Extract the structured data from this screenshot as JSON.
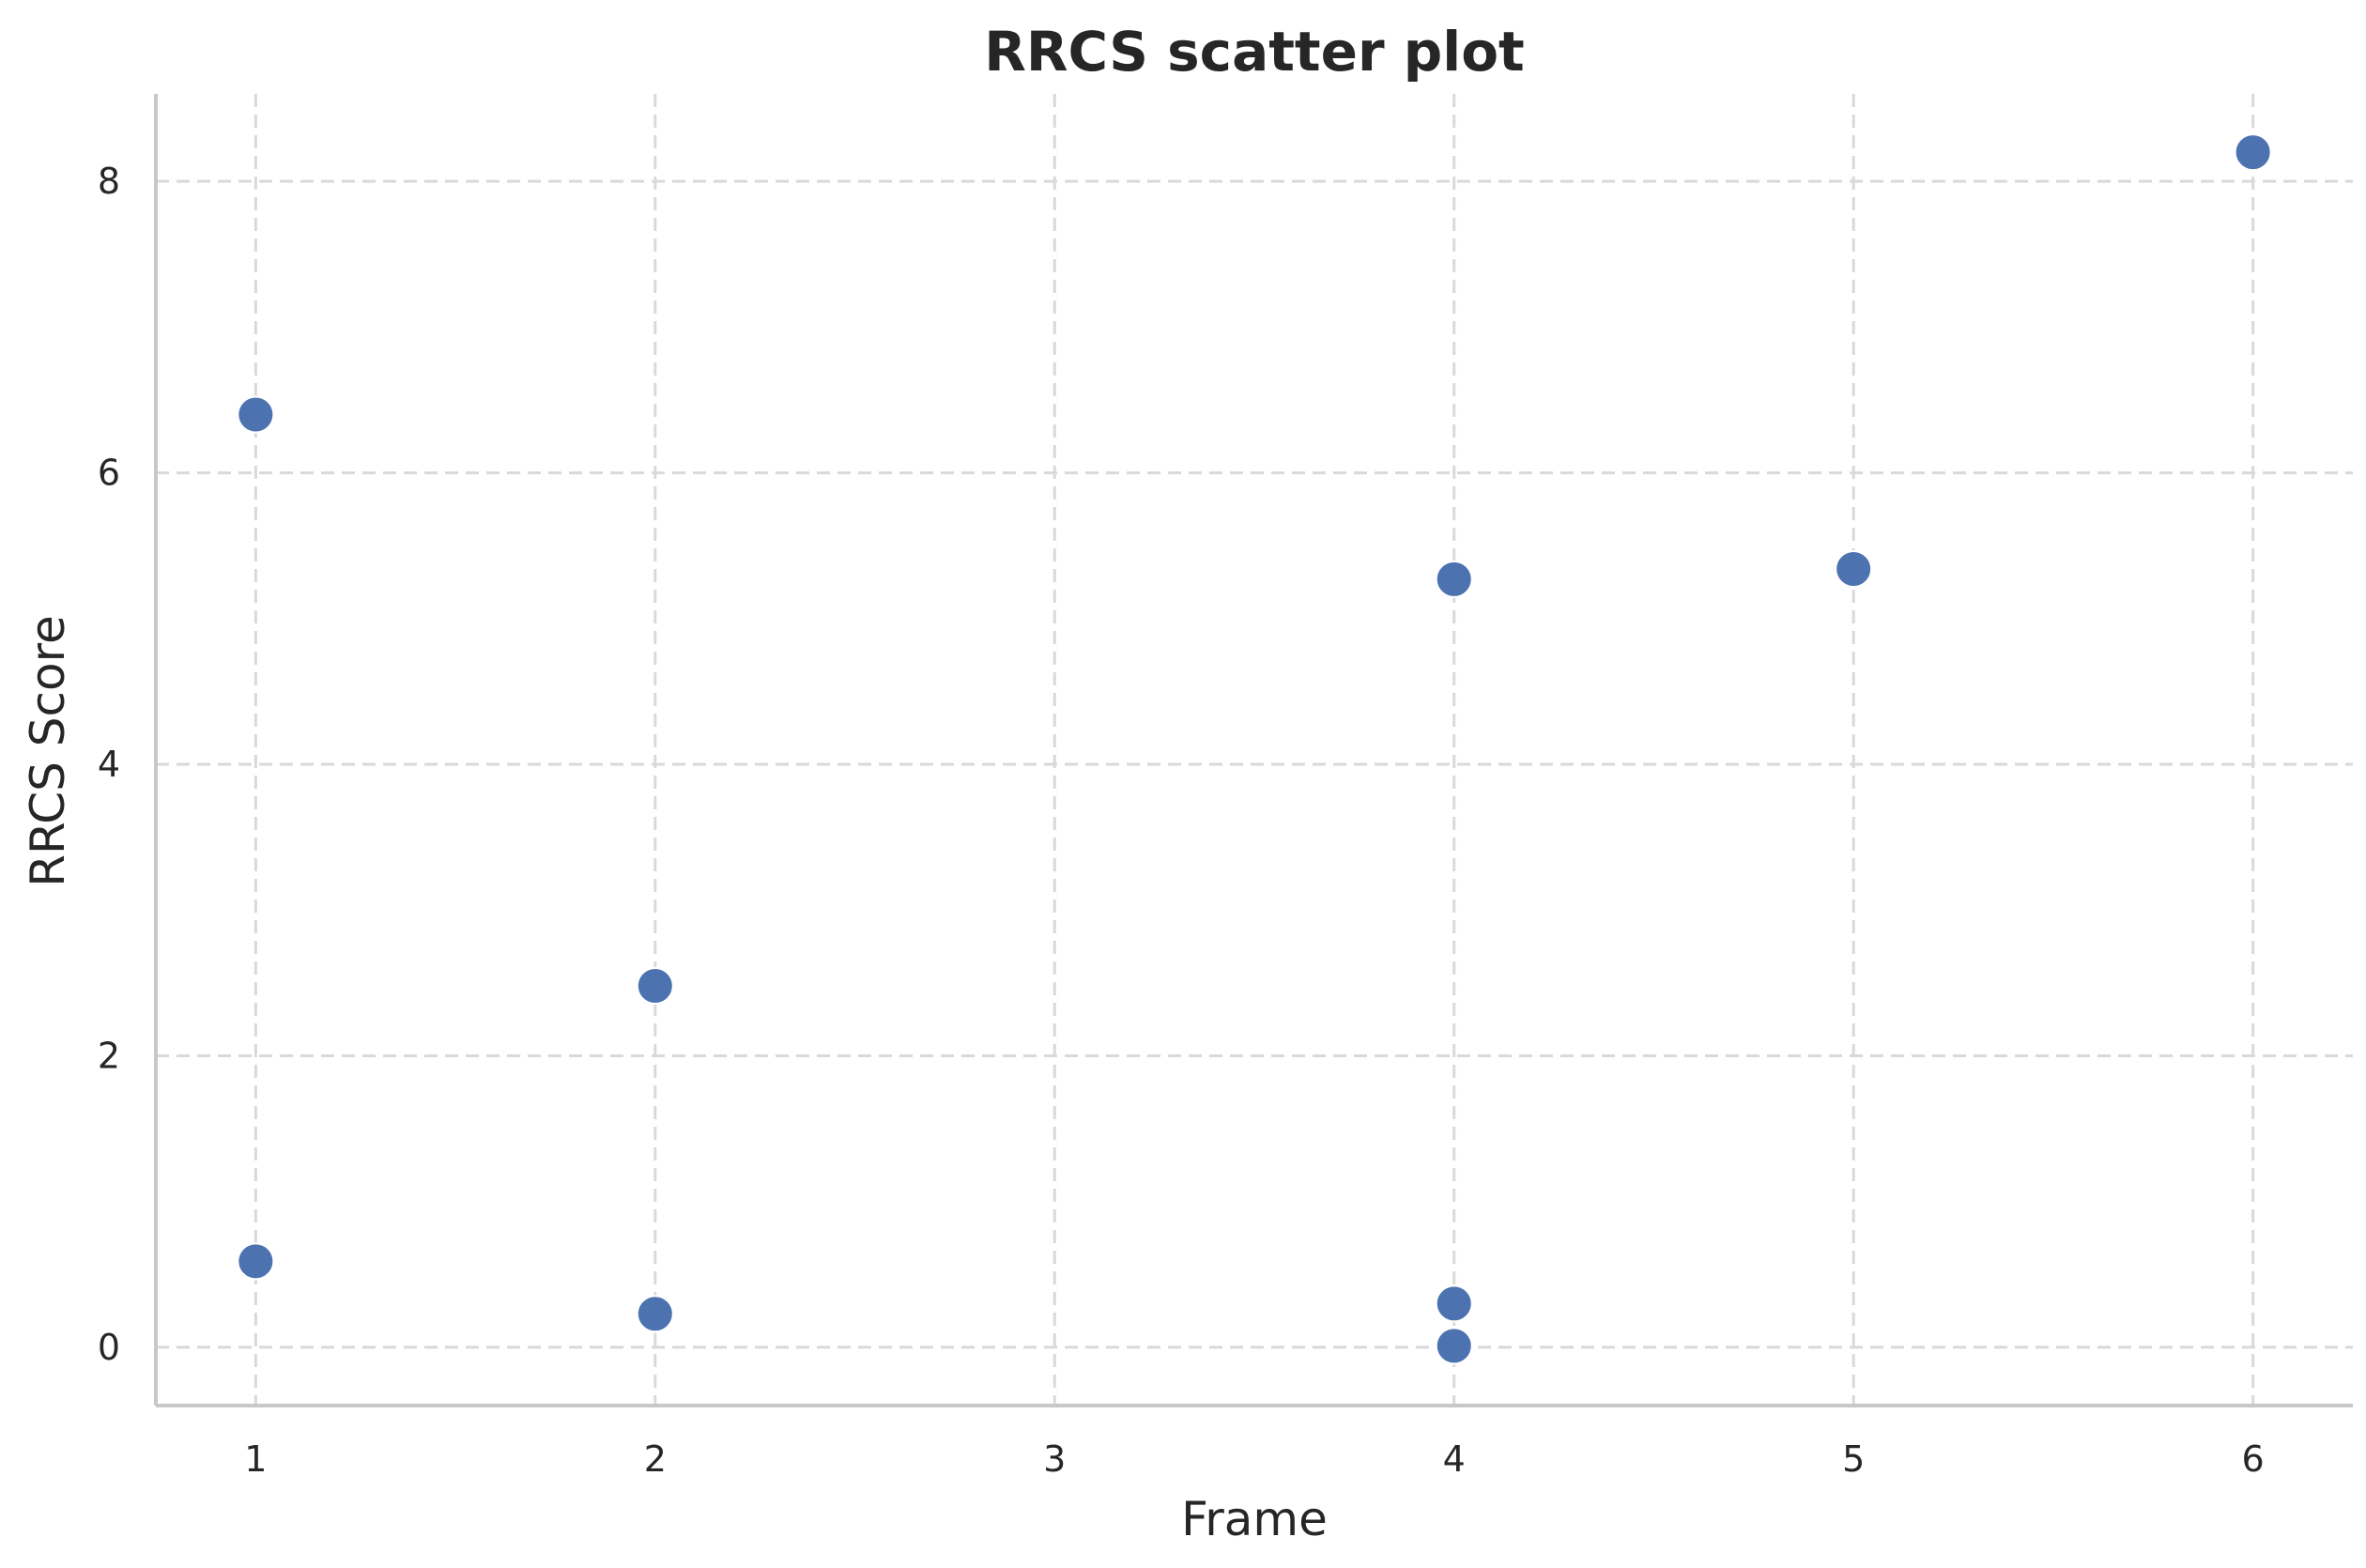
{
  "chart_data": {
    "type": "scatter",
    "title": "RRCS scatter plot",
    "xlabel": "Frame",
    "ylabel": "RRCS Score",
    "xlim": [
      0.75,
      6.25
    ],
    "ylim": [
      -0.4,
      8.6
    ],
    "xticks": [
      1,
      2,
      3,
      4,
      5,
      6
    ],
    "yticks": [
      0,
      2,
      4,
      6,
      8
    ],
    "grid": true,
    "point_color": "#4c72b0",
    "series": [
      {
        "points": [
          {
            "x": 1,
            "y": 6.4
          },
          {
            "x": 1,
            "y": 0.59
          },
          {
            "x": 2,
            "y": 2.48
          },
          {
            "x": 2,
            "y": 0.23
          },
          {
            "x": 4,
            "y": 5.27
          },
          {
            "x": 4,
            "y": 0.3
          },
          {
            "x": 4,
            "y": 0.01
          },
          {
            "x": 5,
            "y": 5.34
          },
          {
            "x": 6,
            "y": 8.2
          }
        ]
      }
    ]
  }
}
